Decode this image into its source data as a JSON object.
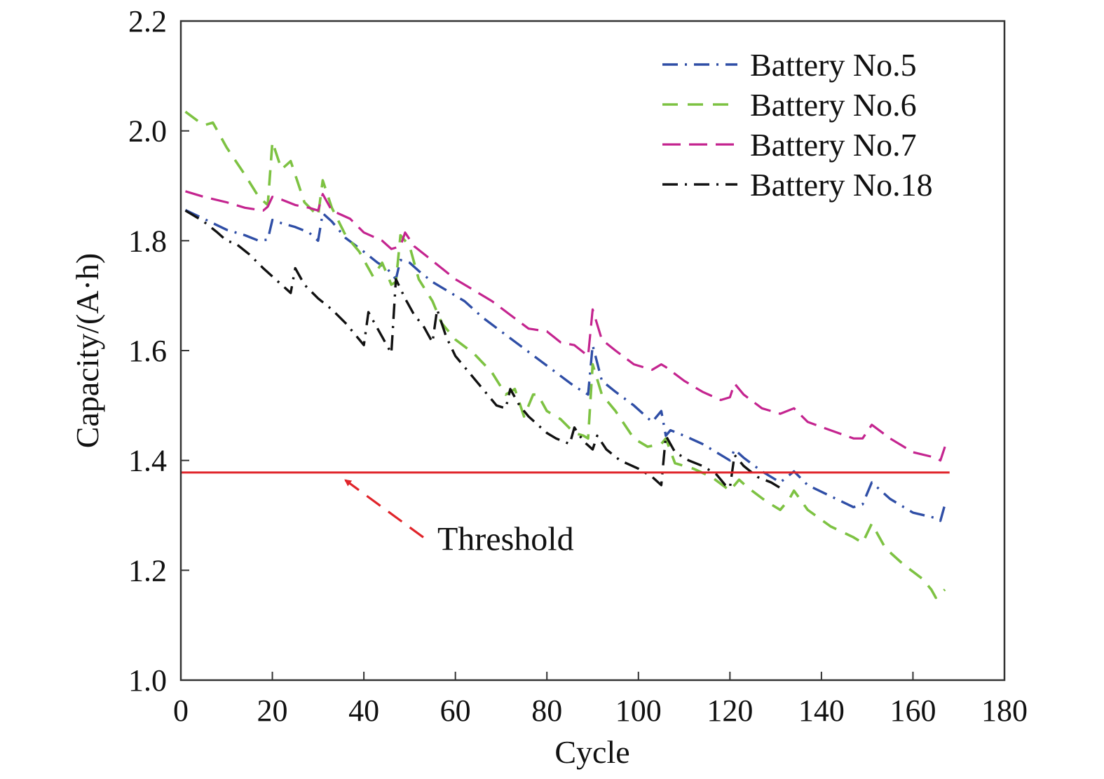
{
  "chart_data": {
    "type": "line",
    "title": "",
    "xlabel": "Cycle",
    "ylabel": "Capacity/(A·h)",
    "xlim": [
      0,
      180
    ],
    "ylim": [
      1.0,
      2.2
    ],
    "xticks": [
      0,
      20,
      40,
      60,
      80,
      100,
      120,
      140,
      160,
      180
    ],
    "yticks": [
      "1.0",
      "1.2",
      "1.4",
      "1.6",
      "1.8",
      "2.0",
      "2.2"
    ],
    "grid": false,
    "legend": "top-right",
    "series": [
      {
        "name": "Battery No.5",
        "color": "#2f4ea6",
        "dash": "dash-dot",
        "points": [
          [
            1,
            1.856
          ],
          [
            5,
            1.84
          ],
          [
            10,
            1.82
          ],
          [
            14,
            1.81
          ],
          [
            17,
            1.8
          ],
          [
            19,
            1.802
          ],
          [
            20,
            1.838
          ],
          [
            22,
            1.832
          ],
          [
            25,
            1.825
          ],
          [
            28,
            1.815
          ],
          [
            30,
            1.8
          ],
          [
            31,
            1.85
          ],
          [
            33,
            1.835
          ],
          [
            36,
            1.805
          ],
          [
            40,
            1.78
          ],
          [
            43,
            1.76
          ],
          [
            45,
            1.75
          ],
          [
            46,
            1.74
          ],
          [
            47,
            1.73
          ],
          [
            48,
            1.765
          ],
          [
            50,
            1.76
          ],
          [
            52,
            1.745
          ],
          [
            55,
            1.725
          ],
          [
            58,
            1.71
          ],
          [
            62,
            1.69
          ],
          [
            66,
            1.66
          ],
          [
            70,
            1.635
          ],
          [
            74,
            1.61
          ],
          [
            78,
            1.585
          ],
          [
            82,
            1.56
          ],
          [
            86,
            1.535
          ],
          [
            89,
            1.52
          ],
          [
            90,
            1.61
          ],
          [
            92,
            1.545
          ],
          [
            95,
            1.525
          ],
          [
            99,
            1.5
          ],
          [
            103,
            1.47
          ],
          [
            105,
            1.49
          ],
          [
            106,
            1.445
          ],
          [
            107,
            1.455
          ],
          [
            110,
            1.445
          ],
          [
            114,
            1.43
          ],
          [
            118,
            1.41
          ],
          [
            120,
            1.4
          ],
          [
            121,
            1.42
          ],
          [
            123,
            1.405
          ],
          [
            127,
            1.38
          ],
          [
            131,
            1.36
          ],
          [
            134,
            1.38
          ],
          [
            137,
            1.355
          ],
          [
            142,
            1.335
          ],
          [
            147,
            1.315
          ],
          [
            149,
            1.32
          ],
          [
            151,
            1.36
          ],
          [
            155,
            1.33
          ],
          [
            160,
            1.305
          ],
          [
            165,
            1.295
          ],
          [
            166,
            1.29
          ],
          [
            167,
            1.32
          ]
        ]
      },
      {
        "name": "Battery No.6",
        "color": "#7dc242",
        "dash": "dash",
        "points": [
          [
            1,
            2.035
          ],
          [
            5,
            2.01
          ],
          [
            7,
            2.015
          ],
          [
            10,
            1.97
          ],
          [
            14,
            1.92
          ],
          [
            17,
            1.88
          ],
          [
            19,
            1.865
          ],
          [
            20,
            1.98
          ],
          [
            22,
            1.93
          ],
          [
            24,
            1.945
          ],
          [
            27,
            1.87
          ],
          [
            30,
            1.845
          ],
          [
            31,
            1.91
          ],
          [
            33,
            1.86
          ],
          [
            36,
            1.81
          ],
          [
            39,
            1.78
          ],
          [
            42,
            1.735
          ],
          [
            44,
            1.76
          ],
          [
            45,
            1.74
          ],
          [
            46,
            1.72
          ],
          [
            47,
            1.725
          ],
          [
            48,
            1.81
          ],
          [
            50,
            1.79
          ],
          [
            52,
            1.73
          ],
          [
            55,
            1.69
          ],
          [
            57,
            1.65
          ],
          [
            60,
            1.62
          ],
          [
            64,
            1.595
          ],
          [
            68,
            1.56
          ],
          [
            71,
            1.52
          ],
          [
            73,
            1.53
          ],
          [
            75,
            1.48
          ],
          [
            77,
            1.52
          ],
          [
            78,
            1.52
          ],
          [
            80,
            1.49
          ],
          [
            83,
            1.475
          ],
          [
            86,
            1.45
          ],
          [
            88,
            1.445
          ],
          [
            89,
            1.44
          ],
          [
            90,
            1.575
          ],
          [
            92,
            1.52
          ],
          [
            95,
            1.49
          ],
          [
            99,
            1.44
          ],
          [
            102,
            1.425
          ],
          [
            105,
            1.43
          ],
          [
            106,
            1.44
          ],
          [
            108,
            1.395
          ],
          [
            112,
            1.385
          ],
          [
            116,
            1.37
          ],
          [
            120,
            1.345
          ],
          [
            122,
            1.365
          ],
          [
            124,
            1.35
          ],
          [
            128,
            1.325
          ],
          [
            131,
            1.31
          ],
          [
            133,
            1.33
          ],
          [
            134,
            1.345
          ],
          [
            137,
            1.31
          ],
          [
            142,
            1.28
          ],
          [
            147,
            1.26
          ],
          [
            149,
            1.25
          ],
          [
            151,
            1.285
          ],
          [
            154,
            1.24
          ],
          [
            158,
            1.21
          ],
          [
            162,
            1.185
          ],
          [
            164,
            1.165
          ],
          [
            165,
            1.15
          ],
          [
            167,
            1.165
          ]
        ]
      },
      {
        "name": "Battery No.7",
        "color": "#c4248f",
        "dash": "longdash",
        "points": [
          [
            1,
            1.89
          ],
          [
            5,
            1.88
          ],
          [
            10,
            1.87
          ],
          [
            14,
            1.86
          ],
          [
            18,
            1.855
          ],
          [
            19,
            1.862
          ],
          [
            20,
            1.88
          ],
          [
            22,
            1.875
          ],
          [
            25,
            1.865
          ],
          [
            28,
            1.86
          ],
          [
            30,
            1.855
          ],
          [
            31,
            1.885
          ],
          [
            33,
            1.855
          ],
          [
            37,
            1.84
          ],
          [
            40,
            1.815
          ],
          [
            44,
            1.8
          ],
          [
            46,
            1.785
          ],
          [
            48,
            1.79
          ],
          [
            49,
            1.815
          ],
          [
            51,
            1.79
          ],
          [
            54,
            1.77
          ],
          [
            57,
            1.75
          ],
          [
            60,
            1.73
          ],
          [
            64,
            1.71
          ],
          [
            68,
            1.69
          ],
          [
            72,
            1.665
          ],
          [
            76,
            1.64
          ],
          [
            80,
            1.635
          ],
          [
            83,
            1.615
          ],
          [
            86,
            1.61
          ],
          [
            89,
            1.59
          ],
          [
            90,
            1.675
          ],
          [
            92,
            1.62
          ],
          [
            95,
            1.6
          ],
          [
            99,
            1.575
          ],
          [
            103,
            1.565
          ],
          [
            105,
            1.575
          ],
          [
            106,
            1.57
          ],
          [
            110,
            1.545
          ],
          [
            114,
            1.525
          ],
          [
            118,
            1.51
          ],
          [
            120,
            1.515
          ],
          [
            121,
            1.54
          ],
          [
            123,
            1.52
          ],
          [
            127,
            1.495
          ],
          [
            131,
            1.485
          ],
          [
            134,
            1.495
          ],
          [
            137,
            1.47
          ],
          [
            142,
            1.455
          ],
          [
            147,
            1.44
          ],
          [
            149,
            1.44
          ],
          [
            151,
            1.465
          ],
          [
            155,
            1.44
          ],
          [
            160,
            1.415
          ],
          [
            165,
            1.405
          ],
          [
            166,
            1.4
          ],
          [
            167,
            1.425
          ]
        ]
      },
      {
        "name": "Battery No.18",
        "color": "#111111",
        "dash": "dash-dot",
        "points": [
          [
            1,
            1.855
          ],
          [
            5,
            1.835
          ],
          [
            8,
            1.815
          ],
          [
            10,
            1.8
          ],
          [
            12,
            1.795
          ],
          [
            15,
            1.775
          ],
          [
            18,
            1.75
          ],
          [
            20,
            1.735
          ],
          [
            22,
            1.72
          ],
          [
            24,
            1.705
          ],
          [
            25,
            1.75
          ],
          [
            27,
            1.72
          ],
          [
            30,
            1.695
          ],
          [
            33,
            1.675
          ],
          [
            36,
            1.65
          ],
          [
            39,
            1.62
          ],
          [
            40,
            1.61
          ],
          [
            41,
            1.67
          ],
          [
            43,
            1.64
          ],
          [
            45,
            1.61
          ],
          [
            46,
            1.595
          ],
          [
            47,
            1.73
          ],
          [
            49,
            1.695
          ],
          [
            51,
            1.665
          ],
          [
            53,
            1.645
          ],
          [
            55,
            1.615
          ],
          [
            56,
            1.675
          ],
          [
            58,
            1.625
          ],
          [
            60,
            1.59
          ],
          [
            63,
            1.56
          ],
          [
            66,
            1.53
          ],
          [
            69,
            1.5
          ],
          [
            71,
            1.495
          ],
          [
            72,
            1.53
          ],
          [
            74,
            1.5
          ],
          [
            76,
            1.48
          ],
          [
            78,
            1.465
          ],
          [
            80,
            1.45
          ],
          [
            82,
            1.44
          ],
          [
            85,
            1.43
          ],
          [
            86,
            1.46
          ],
          [
            88,
            1.435
          ],
          [
            90,
            1.42
          ],
          [
            91,
            1.445
          ],
          [
            93,
            1.42
          ],
          [
            96,
            1.4
          ],
          [
            100,
            1.385
          ],
          [
            103,
            1.37
          ],
          [
            105,
            1.355
          ],
          [
            106,
            1.445
          ],
          [
            108,
            1.415
          ],
          [
            111,
            1.4
          ],
          [
            114,
            1.39
          ],
          [
            117,
            1.375
          ],
          [
            119,
            1.355
          ],
          [
            120,
            1.35
          ],
          [
            121,
            1.41
          ],
          [
            123,
            1.39
          ],
          [
            126,
            1.37
          ],
          [
            129,
            1.36
          ],
          [
            131,
            1.35
          ]
        ]
      },
      {
        "name": "",
        "color": "#e0242a",
        "dash": "solid",
        "points": [
          [
            0,
            1.378
          ],
          [
            168,
            1.378
          ]
        ]
      }
    ],
    "annotations": [
      {
        "text": "Threshold",
        "xy": [
          34,
          1.375
        ],
        "xytext": [
          53,
          1.26
        ],
        "color": "#e0242a"
      }
    ]
  }
}
